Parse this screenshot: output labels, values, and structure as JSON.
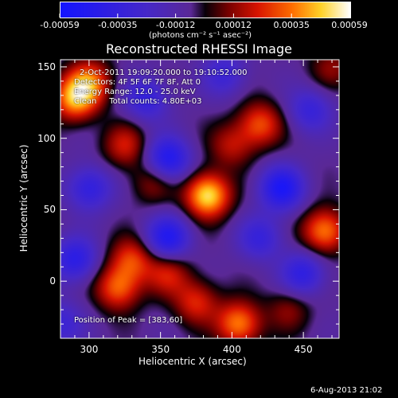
{
  "chart_data": {
    "type": "heatmap",
    "title": "Reconstructed RHESSI Image",
    "xlabel": "Heliocentric X (arcsec)",
    "ylabel": "Heliocentric Y (arcsec)",
    "xlim": [
      280,
      475
    ],
    "ylim": [
      -40,
      155
    ],
    "xticks": [
      "300",
      "350",
      "400",
      "450"
    ],
    "yticks": [
      "0",
      "50",
      "100",
      "150"
    ],
    "colorbar": {
      "range": [
        -0.00059,
        0.00059
      ],
      "tick_labels": [
        "-0.00059",
        "-0.00035",
        "-0.00012",
        "0.00012",
        "0.00035",
        "0.00059"
      ],
      "unit_label": "(photons cm⁻² s⁻¹ asec⁻²)"
    },
    "info": {
      "time_range": "2-Oct-2011 19:09:20.000 to 19:10:52.000",
      "detectors": "Detectors: 4F 5F 6F 7F 8F, Att 0",
      "energy": "Energy Range: 12.0 - 25.0 keV",
      "method": "Clean     Total counts: 4.80E+03",
      "peak": "Position of Peak = [383,60]"
    },
    "blobs": [
      {
        "x": 383,
        "y": 60,
        "amp": 1.0
      },
      {
        "x": 290,
        "y": 128,
        "amp": 0.8
      },
      {
        "x": 300,
        "y": 140,
        "amp": 0.6
      },
      {
        "x": 465,
        "y": 35,
        "amp": 0.75
      },
      {
        "x": 320,
        "y": -5,
        "amp": 0.65
      },
      {
        "x": 405,
        "y": -30,
        "amp": 0.75
      },
      {
        "x": 420,
        "y": 110,
        "amp": 0.6
      },
      {
        "x": 325,
        "y": 95,
        "amp": 0.45
      },
      {
        "x": 330,
        "y": 15,
        "amp": 0.55
      },
      {
        "x": 375,
        "y": -15,
        "amp": 0.5
      },
      {
        "x": 355,
        "y": 5,
        "amp": 0.45
      },
      {
        "x": 345,
        "y": 70,
        "amp": 0.35
      },
      {
        "x": 400,
        "y": 95,
        "amp": 0.4
      },
      {
        "x": 470,
        "y": 150,
        "amp": 0.3
      },
      {
        "x": 440,
        "y": -20,
        "amp": 0.3
      },
      {
        "x": 355,
        "y": 85,
        "amp": -0.75
      },
      {
        "x": 435,
        "y": 65,
        "amp": -0.75
      },
      {
        "x": 355,
        "y": 30,
        "amp": -0.7
      },
      {
        "x": 290,
        "y": 15,
        "amp": -0.6
      },
      {
        "x": 340,
        "y": 128,
        "amp": -0.5
      },
      {
        "x": 450,
        "y": 5,
        "amp": -0.55
      },
      {
        "x": 300,
        "y": 65,
        "amp": -0.55
      },
      {
        "x": 455,
        "y": 120,
        "amp": -0.45
      },
      {
        "x": 395,
        "y": 145,
        "amp": -0.4
      },
      {
        "x": 420,
        "y": 30,
        "amp": -0.45
      },
      {
        "x": 280,
        "y": -30,
        "amp": -0.4
      }
    ]
  },
  "footer": {
    "date": "6-Aug-2013 21:02"
  }
}
